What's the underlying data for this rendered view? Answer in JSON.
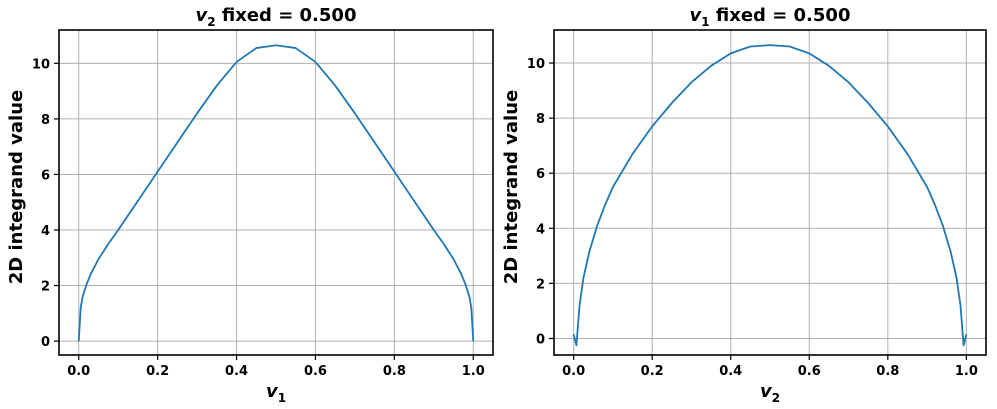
{
  "chart_data": [
    {
      "type": "line",
      "title": {
        "var": "v",
        "sub": "2",
        "rest": " fixed = 0.500"
      },
      "xlabel": {
        "var": "v",
        "sub": "1"
      },
      "ylabel": "2D integrand value",
      "xlim": [
        -0.05,
        1.05
      ],
      "ylim": [
        -0.5,
        11.2
      ],
      "xticks": [
        0.0,
        0.2,
        0.4,
        0.6,
        0.8,
        1.0
      ],
      "xtick_labels": [
        "0.0",
        "0.2",
        "0.4",
        "0.6",
        "0.8",
        "1.0"
      ],
      "yticks": [
        0,
        2,
        4,
        6,
        8,
        10
      ],
      "ytick_labels": [
        "0",
        "2",
        "4",
        "6",
        "8",
        "10"
      ],
      "grid": true,
      "line_color": "#1f77b4",
      "series": [
        {
          "x": [
            0.0,
            0.005,
            0.01,
            0.02,
            0.03,
            0.05,
            0.075,
            0.1,
            0.15,
            0.2,
            0.25,
            0.3,
            0.35,
            0.4,
            0.45,
            0.5,
            0.55,
            0.6,
            0.65,
            0.7,
            0.75,
            0.8,
            0.85,
            0.9,
            0.925,
            0.95,
            0.97,
            0.98,
            0.99,
            0.995,
            1.0
          ],
          "y": [
            0.0,
            1.2,
            1.6,
            2.05,
            2.4,
            2.95,
            3.5,
            4.0,
            5.05,
            6.1,
            7.15,
            8.2,
            9.2,
            10.05,
            10.55,
            10.65,
            10.55,
            10.05,
            9.2,
            8.2,
            7.15,
            6.1,
            5.05,
            4.0,
            3.5,
            2.95,
            2.4,
            2.05,
            1.6,
            1.2,
            0.0
          ]
        }
      ]
    },
    {
      "type": "line",
      "title": {
        "var": "v",
        "sub": "1",
        "rest": " fixed = 0.500"
      },
      "xlabel": {
        "var": "v",
        "sub": "2"
      },
      "ylabel": "2D integrand value",
      "xlim": [
        -0.05,
        1.05
      ],
      "ylim": [
        -0.6,
        11.2
      ],
      "xticks": [
        0.0,
        0.2,
        0.4,
        0.6,
        0.8,
        1.0
      ],
      "xtick_labels": [
        "0.0",
        "0.2",
        "0.4",
        "0.6",
        "0.8",
        "1.0"
      ],
      "yticks": [
        0,
        2,
        4,
        6,
        8,
        10
      ],
      "ytick_labels": [
        "0",
        "2",
        "4",
        "6",
        "8",
        "10"
      ],
      "grid": true,
      "line_color": "#1f77b4",
      "series": [
        {
          "x": [
            0.0,
            0.007,
            0.015,
            0.025,
            0.04,
            0.06,
            0.08,
            0.1,
            0.15,
            0.2,
            0.25,
            0.3,
            0.35,
            0.4,
            0.45,
            0.5,
            0.55,
            0.6,
            0.65,
            0.7,
            0.75,
            0.8,
            0.85,
            0.9,
            0.92,
            0.94,
            0.96,
            0.975,
            0.985,
            0.993,
            1.0
          ],
          "y": [
            0.15,
            -0.25,
            1.2,
            2.2,
            3.15,
            4.1,
            4.85,
            5.5,
            6.7,
            7.7,
            8.55,
            9.3,
            9.9,
            10.35,
            10.6,
            10.65,
            10.6,
            10.35,
            9.9,
            9.3,
            8.55,
            7.7,
            6.7,
            5.5,
            4.85,
            4.1,
            3.15,
            2.2,
            1.2,
            -0.25,
            0.15
          ]
        }
      ]
    }
  ]
}
